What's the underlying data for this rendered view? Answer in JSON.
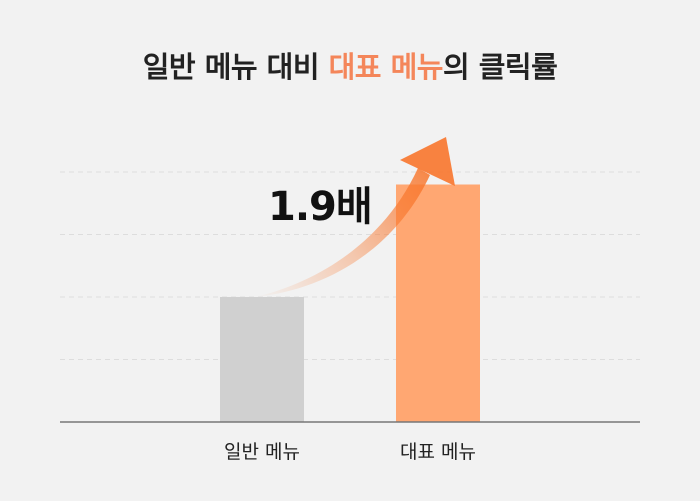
{
  "title": {
    "prefix": "일반 메뉴 대비 ",
    "highlight": "대표 메뉴",
    "suffix": "의 클릭률"
  },
  "colors": {
    "background": "#f2f2f2",
    "highlight_text": "#f4865a",
    "bar_regular": "#d0d0d0",
    "bar_featured": "#ffa772",
    "arrow": "#f8762c",
    "grid": "#dddddd",
    "axis": "#777777"
  },
  "chart_data": {
    "type": "bar",
    "categories": [
      "일반 메뉴",
      "대표 메뉴"
    ],
    "values": [
      1.0,
      1.9
    ],
    "ylim": [
      0,
      2.05
    ],
    "grid": true,
    "annotation": "1.9배"
  }
}
